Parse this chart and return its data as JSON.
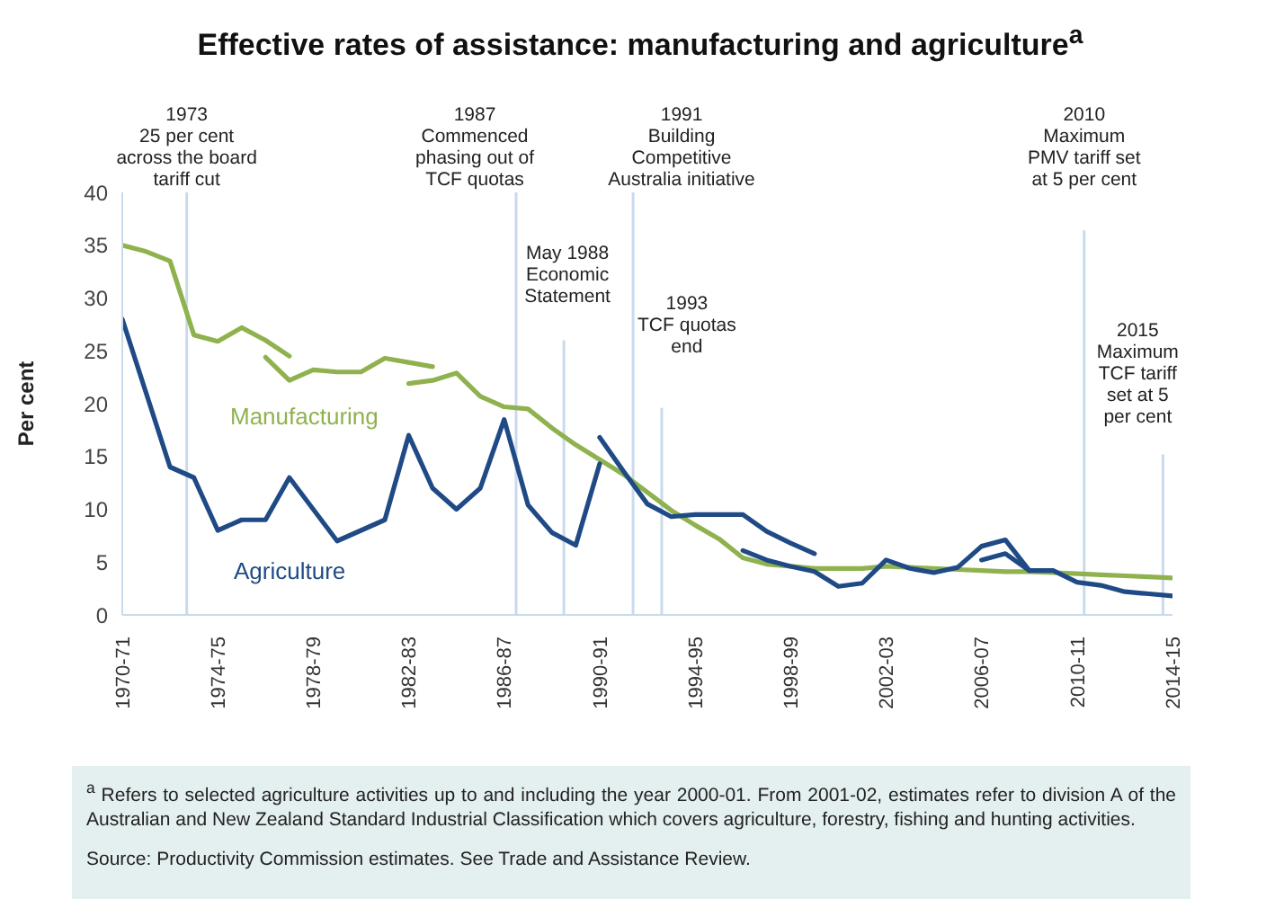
{
  "chart_data": {
    "type": "line",
    "title": "Effective rates of assistance: manufacturing and agriculture$^{a}$",
    "ylabel": "Per cent",
    "categories": [
      "1970-71",
      null,
      null,
      null,
      "1974-75",
      null,
      null,
      null,
      "1978-79",
      null,
      null,
      null,
      "1982-83",
      null,
      null,
      null,
      "1986-87",
      null,
      null,
      null,
      "1990-91",
      null,
      null,
      null,
      "1994-95",
      null,
      null,
      null,
      "1998-99",
      null,
      null,
      null,
      "2002-03",
      null,
      null,
      null,
      "2006-07",
      null,
      null,
      null,
      "2010-11",
      null,
      null,
      null,
      "2014-15"
    ],
    "ylim": [
      0,
      40
    ],
    "yticks": [
      0,
      5,
      10,
      15,
      20,
      25,
      30,
      35,
      40
    ],
    "series": [
      {
        "name": "Manufacturing",
        "color": "#8fb24e",
        "values": [
          35,
          34.4,
          33.5,
          26.5,
          25.9,
          27.2,
          26,
          24.5,
          null,
          null,
          null,
          null,
          null,
          null,
          null,
          null,
          null,
          null,
          null,
          null,
          null,
          null,
          null,
          null,
          null,
          null,
          null,
          null,
          null,
          null,
          null,
          null,
          null,
          null,
          null,
          null,
          null,
          null,
          null,
          null,
          null,
          null,
          null,
          null,
          null
        ]
      },
      {
        "color": "#8fb24e",
        "values": [
          null,
          null,
          null,
          null,
          null,
          null,
          24.4,
          22.2,
          23.2,
          23,
          23,
          24.3,
          23.9,
          23.5,
          null,
          null,
          null,
          null,
          null,
          null,
          null,
          null,
          null,
          null,
          null,
          null,
          null,
          null,
          null,
          null,
          null,
          null,
          null,
          null,
          null,
          null,
          null,
          null,
          null,
          null,
          null,
          null,
          null,
          null,
          null
        ]
      },
      {
        "color": "#8fb24e",
        "values": [
          null,
          null,
          null,
          null,
          null,
          null,
          null,
          null,
          null,
          null,
          null,
          null,
          21.9,
          22.2,
          22.9,
          20.7,
          19.7,
          19.5,
          17.7,
          16.1,
          14.7,
          13.3,
          11.6,
          9.9,
          8.5,
          7.2,
          5.4,
          4.8,
          4.6,
          4.4,
          4.4,
          4.4,
          4.6,
          4.5,
          4.4,
          4.3,
          4.2,
          4.1,
          4.1,
          4.0,
          3.9,
          3.8,
          3.7,
          3.6,
          3.5
        ]
      },
      {
        "name": "Agriculture",
        "color": "#1f4a86",
        "values": [
          28,
          21,
          14,
          13,
          8,
          9,
          9,
          13,
          10,
          7,
          8,
          9,
          17,
          12,
          10,
          12,
          18.5,
          10.4,
          7.8,
          6.6,
          14.3,
          null,
          null,
          null,
          null,
          null,
          null,
          null,
          null,
          null,
          null,
          null,
          null,
          null,
          null,
          null,
          null,
          null,
          null,
          null,
          null,
          null,
          null,
          null,
          null
        ]
      },
      {
        "color": "#1f4a86",
        "values": [
          null,
          null,
          null,
          null,
          null,
          null,
          null,
          null,
          null,
          null,
          null,
          null,
          null,
          null,
          null,
          null,
          null,
          null,
          null,
          null,
          16.8,
          13.6,
          10.5,
          9.3,
          9.5,
          9.5,
          9.5,
          7.9,
          6.8,
          5.8,
          null,
          null,
          null,
          null,
          null,
          null,
          null,
          null,
          null,
          null,
          null,
          null,
          null,
          null,
          null
        ]
      },
      {
        "color": "#1f4a86",
        "values": [
          null,
          null,
          null,
          null,
          null,
          null,
          null,
          null,
          null,
          null,
          null,
          null,
          null,
          null,
          null,
          null,
          null,
          null,
          null,
          null,
          null,
          null,
          null,
          null,
          null,
          null,
          6.1,
          5.2,
          4.6,
          4.1,
          2.7,
          3.0,
          5.2,
          4.4,
          4.0,
          4.5,
          6.5,
          7.1,
          4.2,
          4.2,
          3.1,
          2.8,
          2.2,
          2.0,
          1.8
        ]
      },
      {
        "color": "#1f4a86",
        "values": [
          null,
          null,
          null,
          null,
          null,
          null,
          null,
          null,
          null,
          null,
          null,
          null,
          null,
          null,
          null,
          null,
          null,
          null,
          null,
          null,
          null,
          null,
          null,
          null,
          null,
          null,
          null,
          null,
          null,
          null,
          null,
          null,
          null,
          null,
          null,
          null,
          5.2,
          5.8,
          4.2,
          null,
          null,
          null,
          null,
          null,
          null
        ]
      }
    ],
    "annotations": [
      "1973\n25 per cent\nacross the board\ntariff cut",
      "1987\nCommenced\nphasing out of\nTCF quotas",
      "May 1988\nEconomic\nStatement",
      "1991\nBuilding\nCompetitive\nAustralia initiative",
      "1993\nTCF quotas\nend",
      "2010\nMaximum\nPMV tariff set\nat 5 per cent",
      "2015\nMaximum\nTCF tariff\nset at 5\nper cent",
      "$^{a}$ Refers to selected agriculture activities up to and including the year 2000-01. From 2001-02, estimates refer to division A of the Australian and New Zealand Standard Industrial Classification which covers agriculture, forestry, fishing and hunting activities.",
      "Source: Productivity Commission estimates. See Trade and Assistance Review."
    ]
  }
}
